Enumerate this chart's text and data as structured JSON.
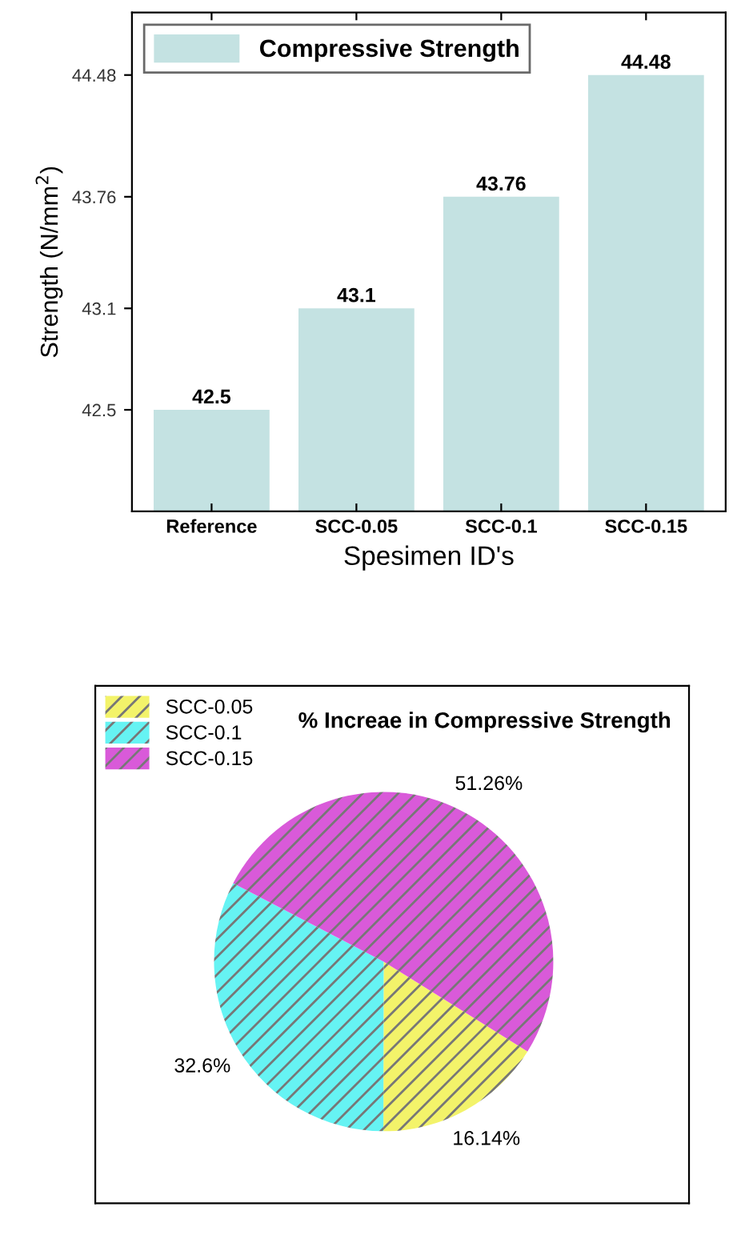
{
  "chart_data": [
    {
      "type": "bar",
      "xlabel": "Spesimen ID's",
      "ylabel": "Strength (N/mm$^{2}$)",
      "categories": [
        "Reference",
        "SCC-0.05",
        "SCC-0.1",
        "SCC-0.15"
      ],
      "series": [
        {
          "name": "Compressive Strength",
          "color": "#c4e2e2",
          "values": [
            42.5,
            43.1,
            43.76,
            44.48
          ]
        }
      ],
      "ylim": [
        41.9,
        44.85
      ],
      "yticks": [
        42.5,
        43.1,
        43.76,
        44.48
      ],
      "data_labels": true,
      "legend": "top left",
      "grid": false
    },
    {
      "type": "pie",
      "title": "% Increae in Compressive Strength",
      "categories": [
        "SCC-0.05",
        "SCC-0.1",
        "SCC-0.15"
      ],
      "values": [
        16.14,
        32.6,
        51.26
      ],
      "colors": [
        "#f3f36a",
        "#66f3f3",
        "#d95ad9"
      ],
      "value_labels": [
        "16.14%",
        "32.6%",
        "51.26%"
      ],
      "legend": "top left"
    }
  ]
}
